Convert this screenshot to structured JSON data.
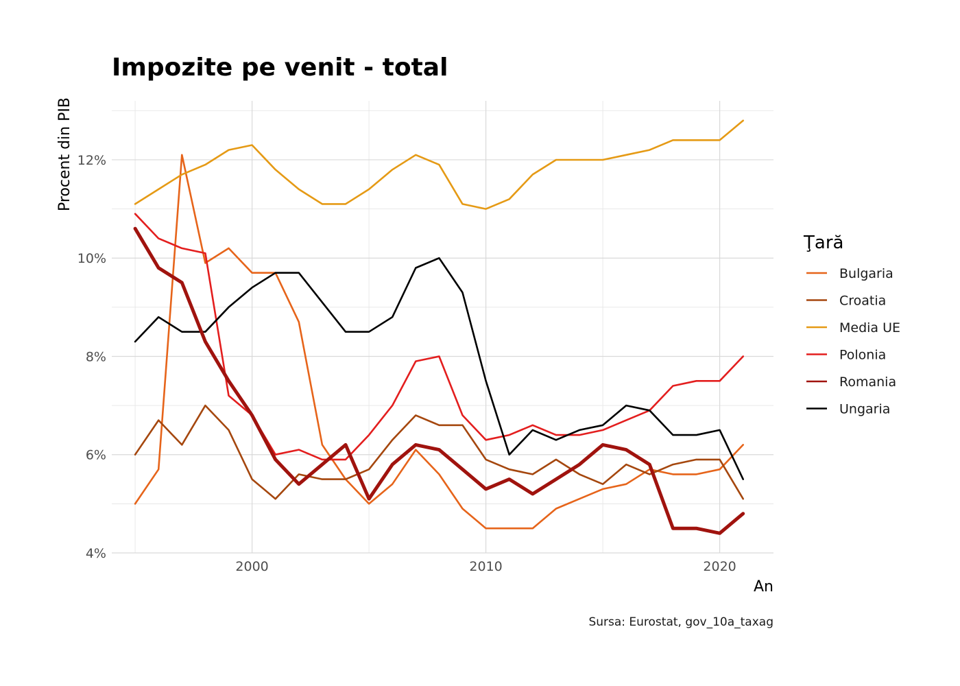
{
  "chart_data": {
    "type": "line",
    "title": "Impozite pe venit - total",
    "xlabel": "An",
    "ylabel": "Procent din PIB",
    "caption": "Sursa: Eurostat, gov_10a_taxag",
    "legend_title": "Ţară",
    "legend_position": "right",
    "grid": true,
    "xlim": [
      1994,
      2022.3
    ],
    "ylim": [
      4,
      13.2
    ],
    "x_ticks": [
      2000,
      2010,
      2020
    ],
    "x_tick_labels": [
      "2000",
      "2010",
      "2020"
    ],
    "y_ticks": [
      4,
      6,
      8,
      10,
      12
    ],
    "y_tick_labels": [
      "4%",
      "6%",
      "8%",
      "10%",
      "12%"
    ],
    "x": [
      1995,
      1996,
      1997,
      1998,
      1999,
      2000,
      2001,
      2002,
      2003,
      2004,
      2005,
      2006,
      2007,
      2008,
      2009,
      2010,
      2011,
      2012,
      2013,
      2014,
      2015,
      2016,
      2017,
      2018,
      2019,
      2020,
      2021
    ],
    "series": [
      {
        "name": "Bulgaria",
        "color": "#e6641a",
        "width": 2.6,
        "values": [
          5.0,
          5.7,
          12.1,
          9.9,
          10.2,
          9.7,
          9.7,
          8.7,
          6.2,
          5.5,
          5.0,
          5.4,
          6.1,
          5.6,
          4.9,
          4.5,
          4.5,
          4.5,
          4.9,
          5.1,
          5.3,
          5.4,
          5.7,
          5.6,
          5.6,
          5.7,
          6.2
        ]
      },
      {
        "name": "Croatia",
        "color": "#a5470e",
        "width": 2.6,
        "values": [
          6.0,
          6.7,
          6.2,
          7.0,
          6.5,
          5.5,
          5.1,
          5.6,
          5.5,
          5.5,
          5.7,
          6.3,
          6.8,
          6.6,
          6.6,
          5.9,
          5.7,
          5.6,
          5.9,
          5.6,
          5.4,
          5.8,
          5.6,
          5.8,
          5.9,
          5.9,
          5.1
        ]
      },
      {
        "name": "Media UE",
        "color": "#e59a15",
        "width": 2.6,
        "values": [
          11.1,
          11.4,
          11.7,
          11.9,
          12.2,
          12.3,
          11.8,
          11.4,
          11.1,
          11.1,
          11.4,
          11.8,
          12.1,
          11.9,
          11.1,
          11.0,
          11.2,
          11.7,
          12.0,
          12.0,
          12.0,
          12.1,
          12.2,
          12.4,
          12.4,
          12.4,
          12.8
        ]
      },
      {
        "name": "Polonia",
        "color": "#e31e1e",
        "width": 2.6,
        "values": [
          10.9,
          10.4,
          10.2,
          10.1,
          7.2,
          6.8,
          6.0,
          6.1,
          5.9,
          5.9,
          6.4,
          7.0,
          7.9,
          8.0,
          6.8,
          6.3,
          6.4,
          6.6,
          6.4,
          6.4,
          6.5,
          6.7,
          6.9,
          7.4,
          7.5,
          7.5,
          8.0
        ]
      },
      {
        "name": "Romania",
        "color": "#a0130e",
        "width": 5.0,
        "values": [
          10.6,
          9.8,
          9.5,
          8.3,
          7.5,
          6.8,
          5.9,
          5.4,
          5.8,
          6.2,
          5.1,
          5.8,
          6.2,
          6.1,
          5.7,
          5.3,
          5.5,
          5.2,
          5.5,
          5.8,
          6.2,
          6.1,
          5.8,
          4.5,
          4.5,
          4.4,
          4.8
        ]
      },
      {
        "name": "Ungaria",
        "color": "#000000",
        "width": 2.6,
        "values": [
          8.3,
          8.8,
          8.5,
          8.5,
          9.0,
          9.4,
          9.7,
          9.7,
          9.1,
          8.5,
          8.5,
          8.8,
          9.8,
          10.0,
          9.3,
          7.5,
          6.0,
          6.5,
          6.3,
          6.5,
          6.6,
          7.0,
          6.9,
          6.4,
          6.4,
          6.5,
          5.5
        ]
      }
    ]
  }
}
